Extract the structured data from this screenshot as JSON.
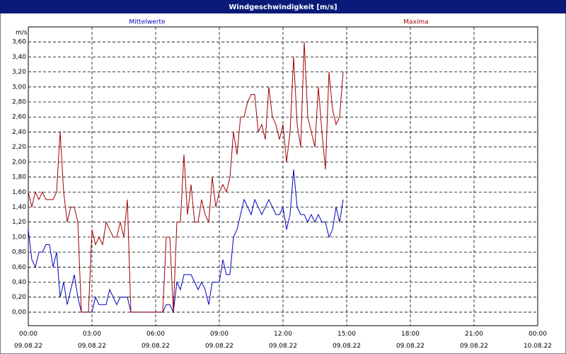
{
  "chart_data": {
    "type": "line",
    "title": "Windgeschwindigkeit [m/s]",
    "y_label": "m/s",
    "x": [
      0,
      10,
      20,
      30,
      40,
      50,
      60,
      70,
      80,
      90,
      100,
      110,
      120,
      130,
      140,
      150,
      160,
      170,
      180,
      190,
      200,
      210,
      220,
      230,
      240,
      250,
      260,
      270,
      280,
      290,
      300,
      310,
      320,
      330,
      340,
      350,
      360,
      370,
      380,
      390,
      400,
      410,
      420,
      430,
      440,
      450,
      460,
      470,
      480,
      490,
      500,
      510,
      520,
      530,
      540,
      550,
      560,
      570,
      580,
      590,
      600,
      610,
      620,
      630,
      640,
      650,
      660,
      670,
      680,
      690,
      700,
      710,
      720,
      730,
      740,
      750,
      760,
      770,
      780,
      790,
      800,
      810,
      820,
      830,
      840,
      850,
      860,
      870,
      880,
      890
    ],
    "series": [
      {
        "name": "Mittelwerte",
        "color": "#0000c0",
        "values": [
          1.1,
          0.7,
          0.6,
          0.8,
          0.8,
          0.9,
          0.9,
          0.6,
          0.8,
          0.2,
          0.4,
          0.1,
          0.3,
          0.5,
          0.2,
          0,
          0,
          0,
          0,
          0.2,
          0.1,
          0.1,
          0.1,
          0.3,
          0.2,
          0.1,
          0.2,
          0.2,
          0.2,
          0,
          0,
          0,
          0,
          0,
          0,
          0,
          0,
          0,
          0,
          0.1,
          0.1,
          0,
          0.4,
          0.3,
          0.5,
          0.5,
          0.5,
          0.4,
          0.3,
          0.4,
          0.3,
          0.1,
          0.4,
          0.4,
          0.4,
          0.7,
          0.5,
          0.5,
          1.0,
          1.1,
          1.3,
          1.5,
          1.4,
          1.3,
          1.5,
          1.4,
          1.3,
          1.4,
          1.5,
          1.4,
          1.3,
          1.3,
          1.4,
          1.1,
          1.3,
          1.9,
          1.4,
          1.3,
          1.3,
          1.2,
          1.3,
          1.2,
          1.3,
          1.2,
          1.2,
          1.0,
          1.1,
          1.4,
          1.2,
          1.5
        ]
      },
      {
        "name": "Maxima",
        "color": "#a00000",
        "values": [
          1.6,
          1.4,
          1.6,
          1.5,
          1.6,
          1.5,
          1.5,
          1.5,
          1.6,
          2.4,
          1.6,
          1.2,
          1.4,
          1.4,
          1.2,
          0,
          0,
          0,
          1.1,
          0.9,
          1.0,
          0.9,
          1.2,
          1.1,
          1.0,
          1.0,
          1.2,
          1.0,
          1.5,
          0,
          0,
          0,
          0,
          0,
          0,
          0,
          0,
          0,
          0,
          1.0,
          1.0,
          0,
          1.2,
          1.2,
          2.1,
          1.3,
          1.7,
          1.2,
          1.2,
          1.5,
          1.3,
          1.2,
          1.8,
          1.4,
          1.6,
          1.7,
          1.6,
          1.8,
          2.4,
          2.1,
          2.6,
          2.6,
          2.8,
          2.9,
          2.9,
          2.4,
          2.5,
          2.3,
          3.0,
          2.6,
          2.5,
          2.3,
          2.5,
          2.0,
          2.4,
          3.4,
          2.5,
          2.2,
          3.6,
          2.6,
          2.4,
          2.2,
          3.0,
          2.4,
          1.9,
          3.2,
          2.7,
          2.5,
          2.6,
          3.2
        ]
      }
    ],
    "xlim": [
      0,
      1440
    ],
    "xticks": [
      {
        "value": 0,
        "label": "00:00\n09.08.22"
      },
      {
        "value": 180,
        "label": "03:00\n09.08.22"
      },
      {
        "value": 360,
        "label": "06:00\n09.08.22"
      },
      {
        "value": 540,
        "label": "09:00\n09.08.22"
      },
      {
        "value": 720,
        "label": "12:00\n09.08.22"
      },
      {
        "value": 900,
        "label": "15:00\n09.08.22"
      },
      {
        "value": 1080,
        "label": "18:00\n09.08.22"
      },
      {
        "value": 1260,
        "label": "21:00\n09.08.22"
      },
      {
        "value": 1440,
        "label": "00:00\n10.08.22"
      }
    ],
    "ylim": [
      -0.18,
      3.8
    ],
    "yticks": [
      {
        "value": 0,
        "label": "0,00"
      },
      {
        "value": 0.2,
        "label": "0,20"
      },
      {
        "value": 0.4,
        "label": "0,40"
      },
      {
        "value": 0.6,
        "label": "0,60"
      },
      {
        "value": 0.8,
        "label": "0,80"
      },
      {
        "value": 1.0,
        "label": "1,00"
      },
      {
        "value": 1.2,
        "label": "1,20"
      },
      {
        "value": 1.4,
        "label": "1,40"
      },
      {
        "value": 1.6,
        "label": "1,60"
      },
      {
        "value": 1.8,
        "label": "1,80"
      },
      {
        "value": 2.0,
        "label": "2,00"
      },
      {
        "value": 2.2,
        "label": "2,20"
      },
      {
        "value": 2.4,
        "label": "2,40"
      },
      {
        "value": 2.6,
        "label": "2,60"
      },
      {
        "value": 2.8,
        "label": "2,80"
      },
      {
        "value": 3.0,
        "label": "3,00"
      },
      {
        "value": 3.2,
        "label": "3,20"
      },
      {
        "value": 3.4,
        "label": "3,40"
      },
      {
        "value": 3.6,
        "label": "3,60"
      }
    ],
    "grid": true
  }
}
